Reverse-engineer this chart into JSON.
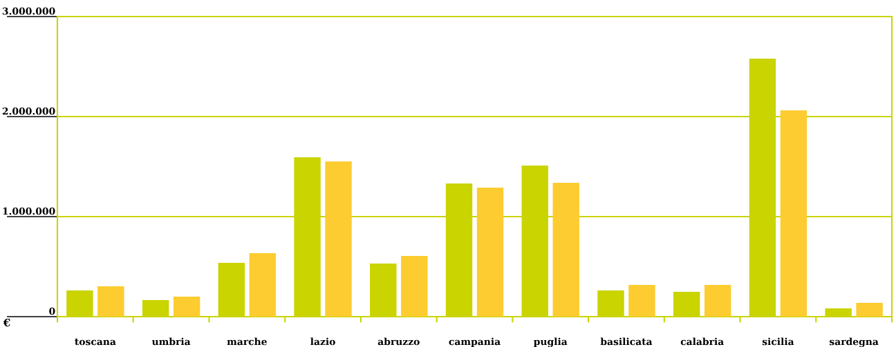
{
  "chart_data": {
    "type": "bar",
    "ylabel": "€",
    "categories": [
      "toscana",
      "umbria",
      "marche",
      "lazio",
      "abruzzo",
      "campania",
      "puglia",
      "basilicata",
      "calabria",
      "sicilia",
      "sardegna"
    ],
    "series": [
      {
        "color": "#c9d400",
        "values": [
          262000,
          166000,
          538000,
          1593000,
          531000,
          1331000,
          1510000,
          262000,
          248000,
          2579000,
          83000
        ]
      },
      {
        "color": "#fccc30",
        "values": [
          303000,
          200000,
          634000,
          1552000,
          607000,
          1290000,
          1338000,
          317000,
          317000,
          2062000,
          138000
        ]
      }
    ],
    "ylim": [
      0,
      3000000
    ],
    "yticks": [
      {
        "value": 0,
        "label": "0"
      },
      {
        "value": 1000000,
        "label": "1.000.000"
      },
      {
        "value": 2000000,
        "label": "2.000.000"
      },
      {
        "value": 3000000,
        "label": "3.000.000"
      }
    ],
    "grid": "y",
    "legend": false
  }
}
